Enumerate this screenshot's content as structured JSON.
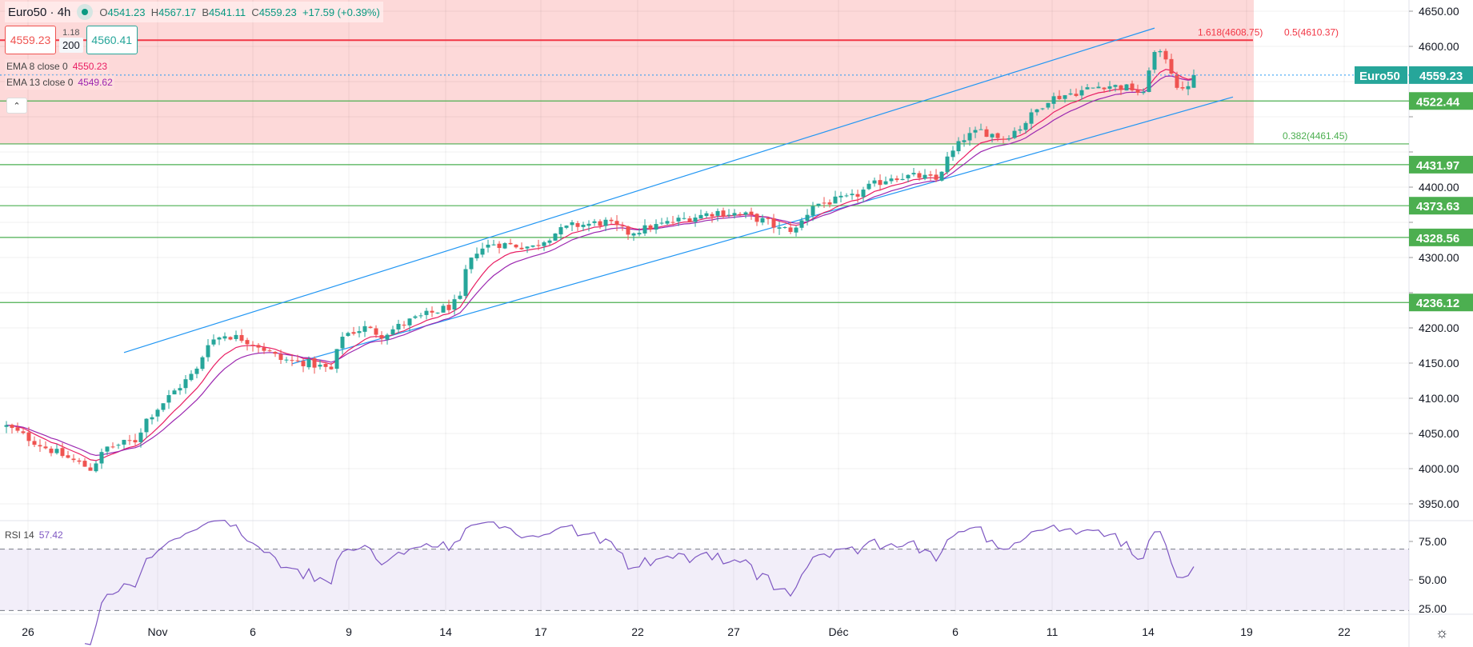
{
  "header": {
    "symbol": "Euro50 · 4h",
    "status_dot_color": "#089981",
    "open_label": "O",
    "open": "4541.23",
    "high_label": "H",
    "high": "4567.17",
    "low_label": "B",
    "low": "4541.11",
    "close_label": "C",
    "close": "4559.23",
    "change": "+17.59 (+0.39%)"
  },
  "trade": {
    "sell_price": "4559.23",
    "spread": "1.18",
    "quantity": "200",
    "buy_price": "4560.41"
  },
  "indicators": [
    {
      "label": "EMA 8 close 0",
      "value": "4550.23",
      "color": "#e91e63",
      "period": 8
    },
    {
      "label": "EMA 13 close 0",
      "value": "4549.62",
      "color": "#9c27b0",
      "period": 13
    }
  ],
  "collapse_icon": "chevron-up-icon",
  "rsi": {
    "label": "RSI 14",
    "value": "57.42",
    "color": "#7e57c2",
    "upper_band": 70,
    "lower_band": 30,
    "ticks": [
      "75.00",
      "50.00",
      "25.00"
    ]
  },
  "colors": {
    "up": "#26a69a",
    "down": "#ef5350",
    "level": "#4caf50",
    "fib_red": "#f23645",
    "channel": "#2196f3",
    "zone": "#fdd9d9"
  },
  "chart_data": {
    "type": "candlestick",
    "symbol": "Euro50",
    "timeframe": "4h",
    "ylim": [
      3925,
      4670
    ],
    "y_ticks": [
      "4650.00",
      "4600.00",
      "4550.00",
      "4500.00",
      "4450.00",
      "4400.00",
      "4350.00",
      "4300.00",
      "4250.00",
      "4200.00",
      "4150.00",
      "4100.00",
      "4050.00",
      "4000.00",
      "3950.00"
    ],
    "x_ticks": [
      "26",
      "Nov",
      "6",
      "9",
      "14",
      "17",
      "22",
      "27",
      "Déc",
      "6",
      "11",
      "14",
      "19",
      "22"
    ],
    "candle_count": 213,
    "close_path": [
      [
        0,
        4060
      ],
      [
        7,
        4030
      ],
      [
        15,
        4000
      ],
      [
        18,
        4030
      ],
      [
        23,
        4040
      ],
      [
        25,
        4070
      ],
      [
        30,
        4110
      ],
      [
        34,
        4140
      ],
      [
        36,
        4180
      ],
      [
        39,
        4190
      ],
      [
        42,
        4185
      ],
      [
        45,
        4175
      ],
      [
        49,
        4155
      ],
      [
        54,
        4150
      ],
      [
        58,
        4140
      ],
      [
        60,
        4190
      ],
      [
        64,
        4200
      ],
      [
        67,
        4190
      ],
      [
        72,
        4210
      ],
      [
        79,
        4230
      ],
      [
        81,
        4240
      ],
      [
        82,
        4280
      ],
      [
        84,
        4310
      ],
      [
        87,
        4320
      ],
      [
        94,
        4315
      ],
      [
        98,
        4335
      ],
      [
        101,
        4345
      ],
      [
        107,
        4350
      ],
      [
        111,
        4335
      ],
      [
        116,
        4345
      ],
      [
        121,
        4355
      ],
      [
        127,
        4365
      ],
      [
        132,
        4360
      ],
      [
        136,
        4350
      ],
      [
        138,
        4340
      ],
      [
        141,
        4340
      ],
      [
        144,
        4375
      ],
      [
        151,
        4385
      ],
      [
        154,
        4400
      ],
      [
        158,
        4415
      ],
      [
        163,
        4415
      ],
      [
        166,
        4410
      ],
      [
        168,
        4440
      ],
      [
        171,
        4470
      ],
      [
        174,
        4480
      ],
      [
        178,
        4470
      ],
      [
        181,
        4485
      ],
      [
        184,
        4510
      ],
      [
        186,
        4525
      ],
      [
        191,
        4535
      ],
      [
        196,
        4545
      ],
      [
        201,
        4540
      ],
      [
        203,
        4530
      ],
      [
        204,
        4570
      ],
      [
        205,
        4590
      ],
      [
        207,
        4585
      ],
      [
        209,
        4545
      ],
      [
        210,
        4535
      ],
      [
        212,
        4559.23
      ]
    ],
    "last_candle": {
      "open": 4541.23,
      "high": 4567.17,
      "low": 4541.11,
      "close": 4559.23
    },
    "current_price_badge": {
      "label": "Euro50",
      "price": "4559.23"
    },
    "levels": [
      {
        "price": 4522.44,
        "label": "4522.44"
      },
      {
        "price": 4431.97,
        "label": "4431.97"
      },
      {
        "price": 4373.63,
        "label": "4373.63"
      },
      {
        "price": 4328.56,
        "label": "4328.56"
      },
      {
        "price": 4236.12,
        "label": "4236.12"
      }
    ],
    "fib": {
      "top": {
        "price": 4608.75,
        "label_a": "1.618(4608.75)",
        "label_b": "0.5(4610.37)"
      },
      "bottom": {
        "price": 4461.45,
        "label": "0.382(4461.45)"
      }
    },
    "channel": {
      "upper": [
        [
          21,
          4165
        ],
        [
          205,
          4626
        ]
      ],
      "lower": [
        [
          51,
          4149
        ],
        [
          219,
          4528
        ]
      ]
    }
  }
}
